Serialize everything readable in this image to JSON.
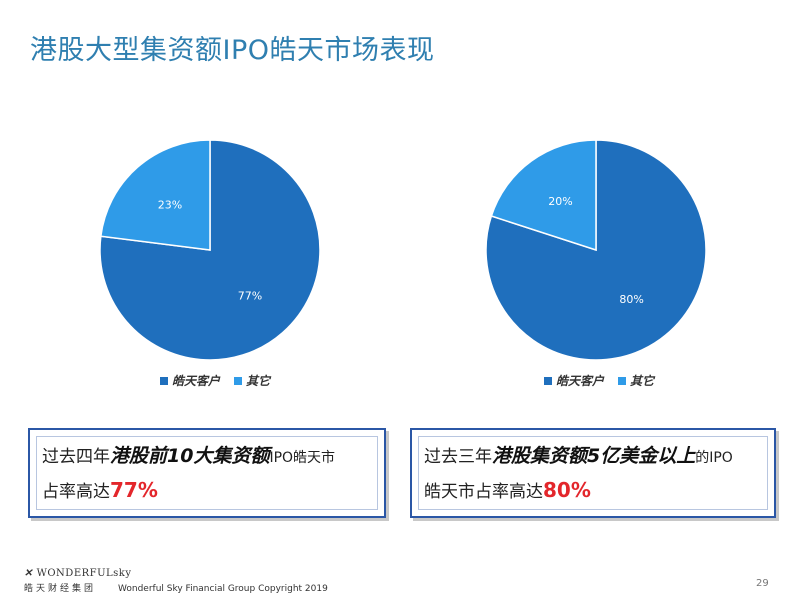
{
  "title": "港股大型集资额IPO皓天市场表现",
  "chart_data": [
    {
      "type": "pie",
      "categories": [
        "皓天客户",
        "其它"
      ],
      "values": [
        77,
        23
      ],
      "value_labels": [
        "77%",
        "23%"
      ],
      "colors": [
        "#1f6fbd",
        "#2f9be8"
      ],
      "legend_position": "bottom"
    },
    {
      "type": "pie",
      "categories": [
        "皓天客户",
        "其它"
      ],
      "values": [
        80,
        20
      ],
      "value_labels": [
        "80%",
        "20%"
      ],
      "colors": [
        "#1f6fbd",
        "#2f9be8"
      ],
      "legend_position": "bottom"
    }
  ],
  "legend": {
    "item1": "皓天客户",
    "item2": "其它"
  },
  "callouts": [
    {
      "part1": "过去四年",
      "part2": "港股前10大集资额",
      "part3": "IPO皓天市",
      "part4": "占率高达",
      "pct": "77%"
    },
    {
      "part1": "过去三年",
      "part2": "港股集资额5亿美金以上",
      "part3": "的IPO",
      "part4": "皓天市占率高达",
      "pct": "80%"
    }
  ],
  "footer": {
    "brand": "WONDERFULsky",
    "brand_cn": "皓天财经集团",
    "copyright": "Wonderful Sky Financial Group Copyright 2019",
    "page_number": "29"
  }
}
